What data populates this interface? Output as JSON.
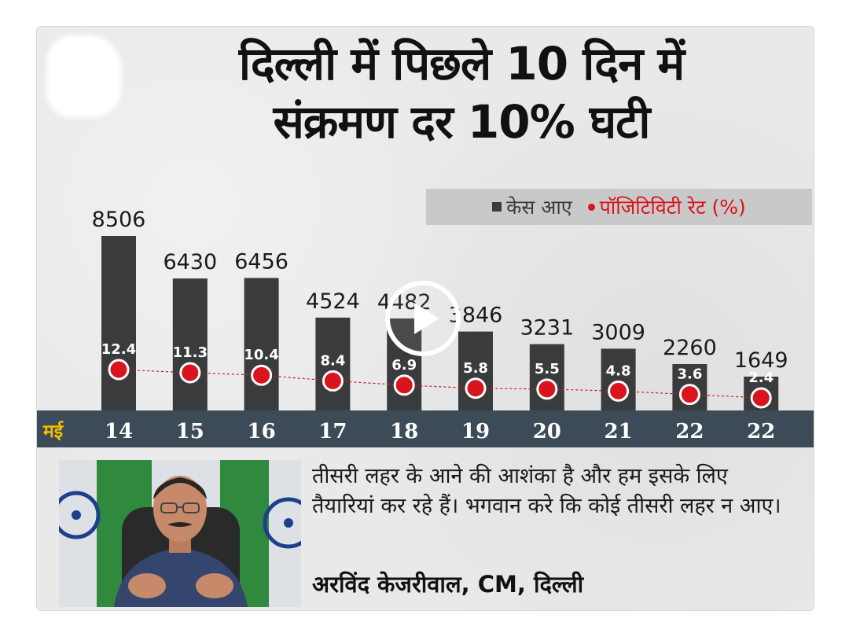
{
  "headline": {
    "line1": "दिल्ली में पिछले 10 दिन में",
    "line2": "संक्रमण दर 10% घटी"
  },
  "legend": {
    "cases_label": "केस आए",
    "rate_label": "पॉजिटिविटी रेट (%)"
  },
  "colors": {
    "bar": "#3a3b3d",
    "dot": "#d9141c",
    "axis_band": "#3d4b58",
    "axis_text": "#ffffff",
    "month_label": "#f2c200"
  },
  "chart_data": {
    "type": "bar",
    "month_label": "मई",
    "categories": [
      "14",
      "15",
      "16",
      "17",
      "18",
      "19",
      "20",
      "21",
      "22",
      "22"
    ],
    "series": [
      {
        "name": "केस आए",
        "type": "bar",
        "values": [
          8506,
          6430,
          6456,
          4524,
          4482,
          3846,
          3231,
          3009,
          2260,
          1649
        ]
      },
      {
        "name": "पॉजिटिविटी रेट (%)",
        "type": "line",
        "values": [
          12.4,
          11.3,
          10.4,
          8.4,
          6.9,
          5.8,
          5.5,
          4.8,
          3.6,
          2.4
        ]
      }
    ],
    "bar_labels": [
      "8506",
      "6430",
      "6456",
      "4524",
      "4482",
      "3846",
      "3231",
      "3009",
      "2260",
      "1649"
    ],
    "rate_labels": [
      "12.4",
      "11.3",
      "10.4",
      "8.4",
      "6.9",
      "5.8",
      "5.5",
      "4.8",
      "3.6",
      "2.4"
    ],
    "legend_position": "top-right",
    "grid": false,
    "y_axis_visible": false
  },
  "quote": {
    "text": "तीसरी लहर के आने की आशंका है और हम इसके लिए तैयारियां कर रहे हैं। भगवान करे कि कोई तीसरी लहर न आए।",
    "author": "अरविंद केजरीवाल, CM, दिल्ली"
  }
}
